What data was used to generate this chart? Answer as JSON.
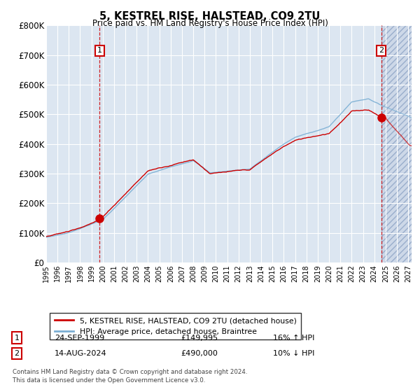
{
  "title": "5, KESTREL RISE, HALSTEAD, CO9 2TU",
  "subtitle": "Price paid vs. HM Land Registry's House Price Index (HPI)",
  "red_label": "5, KESTREL RISE, HALSTEAD, CO9 2TU (detached house)",
  "blue_label": "HPI: Average price, detached house, Braintree",
  "ann1_num": "1",
  "ann1_date": "24-SEP-1999",
  "ann1_price": "£149,995",
  "ann1_note": "16% ↑ HPI",
  "ann1_year": 1999.73,
  "ann1_price_val": 149995,
  "ann2_num": "2",
  "ann2_date": "14-AUG-2024",
  "ann2_price": "£490,000",
  "ann2_note": "10% ↓ HPI",
  "ann2_year": 2024.62,
  "ann2_price_val": 490000,
  "footer1": "Contains HM Land Registry data © Crown copyright and database right 2024.",
  "footer2": "This data is licensed under the Open Government Licence v3.0.",
  "ylim": [
    0,
    800000
  ],
  "yticks": [
    0,
    100000,
    200000,
    300000,
    400000,
    500000,
    600000,
    700000,
    800000
  ],
  "ytick_labels": [
    "£0",
    "£100K",
    "£200K",
    "£300K",
    "£400K",
    "£500K",
    "£600K",
    "£700K",
    "£800K"
  ],
  "bg_color": "#dce6f1",
  "hatch_bg_color": "#cdd8e8",
  "grid_color": "white",
  "red_color": "#cc0000",
  "blue_color": "#7bafd4",
  "future_start": 2024.62,
  "xmin": 1995,
  "xmax": 2027.3
}
